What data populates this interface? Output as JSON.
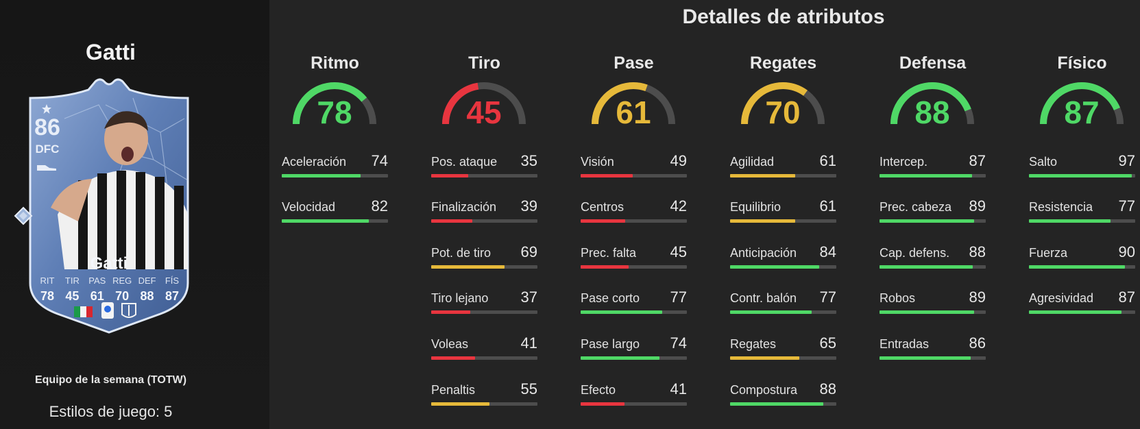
{
  "player": {
    "name": "Gatti",
    "program": "Equipo de la semana (TOTW)",
    "playstyles": "Estilos de juego: 5"
  },
  "card": {
    "rating": "86",
    "position": "DFC",
    "name": "Gatti",
    "stats": [
      {
        "label": "RIT",
        "value": "78"
      },
      {
        "label": "TIR",
        "value": "45"
      },
      {
        "label": "PAS",
        "value": "61"
      },
      {
        "label": "REG",
        "value": "70"
      },
      {
        "label": "DEF",
        "value": "88"
      },
      {
        "label": "FÍS",
        "value": "87"
      }
    ]
  },
  "details": {
    "title": "Detalles de atributos",
    "colors": {
      "green": "#4fd866",
      "yellow": "#e6b93a",
      "red": "#e8353f",
      "track": "#4d4d4d"
    },
    "categories": [
      {
        "name": "Ritmo",
        "value": 78,
        "tier": "green",
        "attributes": [
          {
            "label": "Aceleración",
            "value": 74
          },
          {
            "label": "Velocidad",
            "value": 82
          }
        ]
      },
      {
        "name": "Tiro",
        "value": 45,
        "tier": "red",
        "attributes": [
          {
            "label": "Pos. ataque",
            "value": 35
          },
          {
            "label": "Finalización",
            "value": 39
          },
          {
            "label": "Pot. de tiro",
            "value": 69
          },
          {
            "label": "Tiro lejano",
            "value": 37
          },
          {
            "label": "Voleas",
            "value": 41
          },
          {
            "label": "Penaltis",
            "value": 55
          }
        ]
      },
      {
        "name": "Pase",
        "value": 61,
        "tier": "yellow",
        "attributes": [
          {
            "label": "Visión",
            "value": 49
          },
          {
            "label": "Centros",
            "value": 42
          },
          {
            "label": "Prec. falta",
            "value": 45
          },
          {
            "label": "Pase corto",
            "value": 77
          },
          {
            "label": "Pase largo",
            "value": 74
          },
          {
            "label": "Efecto",
            "value": 41
          }
        ]
      },
      {
        "name": "Regates",
        "value": 70,
        "tier": "yellow",
        "attributes": [
          {
            "label": "Agilidad",
            "value": 61
          },
          {
            "label": "Equilibrio",
            "value": 61
          },
          {
            "label": "Anticipación",
            "value": 84
          },
          {
            "label": "Contr. balón",
            "value": 77
          },
          {
            "label": "Regates",
            "value": 65
          },
          {
            "label": "Compostura",
            "value": 88
          }
        ]
      },
      {
        "name": "Defensa",
        "value": 88,
        "tier": "green",
        "attributes": [
          {
            "label": "Intercep.",
            "value": 87
          },
          {
            "label": "Prec. cabeza",
            "value": 89
          },
          {
            "label": "Cap. defens.",
            "value": 88
          },
          {
            "label": "Robos",
            "value": 89
          },
          {
            "label": "Entradas",
            "value": 86
          }
        ]
      },
      {
        "name": "Físico",
        "value": 87,
        "tier": "green",
        "attributes": [
          {
            "label": "Salto",
            "value": 97
          },
          {
            "label": "Resistencia",
            "value": 77
          },
          {
            "label": "Fuerza",
            "value": 90
          },
          {
            "label": "Agresividad",
            "value": 87
          }
        ]
      }
    ]
  }
}
